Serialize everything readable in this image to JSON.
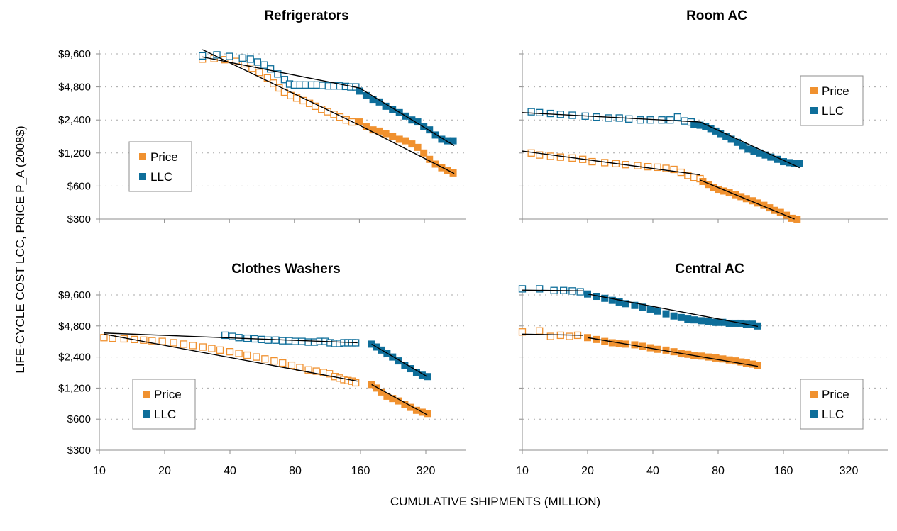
{
  "figure": {
    "ylabel": "LIFE-CYCLE COST LCC, PRICE P_A (2008$)",
    "xlabel": "CUMULATIVE SHIPMENTS (MILLION)"
  },
  "colors": {
    "price": "#f0912f",
    "llc": "#0e6e9a",
    "trend": "#000000"
  },
  "chart_data": [
    {
      "type": "scatter",
      "title": "Refrigerators",
      "xscale": "log",
      "yscale": "log",
      "xlim": [
        10,
        500
      ],
      "ylim": [
        300,
        12800
      ],
      "yticks": [
        "$9,600",
        "$4,800",
        "$2,400",
        "$1,200",
        "$600",
        "$300"
      ],
      "legend": {
        "position": "left",
        "items": [
          "Price",
          "LLC"
        ]
      },
      "series": [
        {
          "name": "Price",
          "key": "price",
          "open": {
            "x": [
              30,
              34,
              38,
              43,
              47,
              51,
              55,
              60,
              64,
              68,
              72,
              77,
              82,
              88,
              94,
              100,
              107,
              114,
              122,
              130,
              139,
              148
            ],
            "y": [
              8600,
              8700,
              8500,
              8200,
              7800,
              7100,
              6500,
              5800,
              5200,
              4700,
              4300,
              4000,
              3800,
              3600,
              3400,
              3200,
              3000,
              2850,
              2700,
              2550,
              2400,
              2300
            ]
          },
          "filled": {
            "x": [
              160,
              172,
              185,
              198,
              212,
              228,
              245,
              262,
              280,
              298,
              318,
              338,
              360,
              385,
              410,
              435
            ],
            "y": [
              2300,
              2100,
              1950,
              1900,
              1800,
              1700,
              1600,
              1550,
              1450,
              1350,
              1200,
              1050,
              950,
              880,
              830,
              790
            ]
          },
          "trends": [
            {
              "x": [
                30,
                160
              ],
              "y": [
                10500,
                2150
              ]
            },
            {
              "x": [
                160,
                440
              ],
              "y": [
                2150,
                780
              ]
            }
          ]
        },
        {
          "name": "LLC",
          "key": "llc",
          "open": {
            "x": [
              30,
              35,
              40,
              46,
              50,
              54,
              58,
              62,
              67,
              72,
              76,
              80,
              85,
              90,
              96,
              102,
              108,
              115,
              122,
              130,
              138,
              146,
              154
            ],
            "y": [
              9200,
              9400,
              9100,
              8800,
              8600,
              8100,
              7600,
              7000,
              6300,
              5600,
              5100,
              5000,
              5000,
              5000,
              5000,
              5000,
              4950,
              4900,
              4900,
              4900,
              4850,
              4800,
              4800
            ]
          },
          "filled": {
            "x": [
              160,
              172,
              185,
              198,
              212,
              228,
              245,
              262,
              280,
              298,
              318,
              338,
              360,
              385,
              410,
              435
            ],
            "y": [
              4400,
              4000,
              3700,
              3500,
              3200,
              3000,
              2800,
              2600,
              2400,
              2300,
              2100,
              1950,
              1750,
              1600,
              1550,
              1550
            ]
          },
          "trends": [
            {
              "x": [
                30,
                160
              ],
              "y": [
                9000,
                4700
              ]
            },
            {
              "x": [
                160,
                440
              ],
              "y": [
                4700,
                1400
              ]
            }
          ]
        }
      ]
    },
    {
      "type": "scatter",
      "title": "Room AC",
      "xscale": "log",
      "yscale": "log",
      "xlim": [
        10,
        500
      ],
      "ylim": [
        300,
        12800
      ],
      "legend": {
        "position": "top-right",
        "items": [
          "Price",
          "LLC"
        ]
      },
      "series": [
        {
          "name": "Price",
          "key": "price",
          "open": {
            "x": [
              11,
              12,
              13.5,
              15,
              17,
              19,
              21,
              24,
              27,
              30,
              34,
              38,
              42,
              46,
              50,
              54,
              58,
              62,
              66
            ],
            "y": [
              1200,
              1150,
              1120,
              1100,
              1080,
              1050,
              1000,
              980,
              960,
              940,
              920,
              900,
              890,
              870,
              850,
              800,
              750,
              720,
              700
            ]
          },
          "filled": {
            "x": [
              68,
              72,
              76,
              80,
              85,
              90,
              96,
              102,
              108,
              115,
              122,
              130,
              138,
              146,
              155,
              165,
              175,
              185
            ],
            "y": [
              660,
              620,
              580,
              560,
              540,
              520,
              500,
              480,
              460,
              440,
              420,
              400,
              380,
              360,
              345,
              325,
              305,
              300
            ]
          },
          "trends": [
            {
              "x": [
                10,
                66
              ],
              "y": [
                1250,
                760
              ]
            },
            {
              "x": [
                66,
                180
              ],
              "y": [
                680,
                300
              ]
            }
          ]
        },
        {
          "name": "LLC",
          "key": "llc",
          "open": {
            "x": [
              11,
              12,
              13.5,
              15,
              17,
              19.5,
              22,
              25,
              28,
              31,
              35,
              39,
              44,
              48,
              52,
              56,
              60
            ],
            "y": [
              2850,
              2800,
              2750,
              2700,
              2650,
              2600,
              2550,
              2500,
              2500,
              2450,
              2400,
              2400,
              2400,
              2400,
              2550,
              2350,
              2300
            ]
          },
          "filled": {
            "x": [
              62,
              66,
              70,
              74,
              78,
              82,
              87,
              92,
              98,
              104,
              110,
              117,
              124,
              132,
              140,
              150,
              160,
              170,
              180,
              190
            ],
            "y": [
              2200,
              2150,
              2100,
              2000,
              1900,
              1800,
              1700,
              1600,
              1500,
              1400,
              1300,
              1250,
              1200,
              1150,
              1100,
              1050,
              1000,
              980,
              970,
              960
            ]
          },
          "trends": [
            {
              "x": [
                10,
                66
              ],
              "y": [
                2800,
                2300
              ]
            },
            {
              "x": [
                66,
                190
              ],
              "y": [
                2300,
                880
              ]
            }
          ]
        }
      ]
    },
    {
      "type": "scatter",
      "title": "Clothes Washers",
      "xscale": "log",
      "yscale": "log",
      "xlim": [
        10,
        500
      ],
      "ylim": [
        300,
        12800
      ],
      "yticks": [
        "$9,600",
        "$4,800",
        "$2,400",
        "$1,200",
        "$600",
        "$300"
      ],
      "xticks": [
        "10",
        "20",
        "40",
        "80",
        "160",
        "320"
      ],
      "legend": {
        "position": "bottom-left",
        "items": [
          "Price",
          "LLC"
        ]
      },
      "series": [
        {
          "name": "Price",
          "key": "price",
          "open": {
            "x": [
              10.5,
              11.5,
              13,
              14.5,
              16,
              17.5,
              19.5,
              22,
              24.5,
              27,
              30,
              33,
              36,
              40,
              44,
              48,
              53,
              58,
              64,
              70,
              77,
              84,
              92,
              100,
              108,
              115,
              122,
              128,
              134,
              140,
              146,
              152
            ],
            "y": [
              3700,
              3650,
              3600,
              3550,
              3500,
              3450,
              3400,
              3300,
              3200,
              3100,
              3000,
              2900,
              2800,
              2700,
              2600,
              2500,
              2400,
              2300,
              2200,
              2100,
              2000,
              1900,
              1800,
              1750,
              1700,
              1650,
              1550,
              1500,
              1450,
              1420,
              1400,
              1350
            ]
          },
          "filled": {
            "x": [
              180,
              190,
              200,
              212,
              225,
              240,
              256,
              272,
              290,
              308,
              325
            ],
            "y": [
              1300,
              1200,
              1100,
              1000,
              950,
              900,
              830,
              780,
              730,
              700,
              680
            ]
          },
          "trends": [
            {
              "x": [
                10.5,
                155
              ],
              "y": [
                4000,
                1400
              ]
            },
            {
              "x": [
                180,
                325
              ],
              "y": [
                1300,
                660
              ]
            }
          ]
        },
        {
          "name": "LLC",
          "key": "llc",
          "open": {
            "x": [
              38,
              41,
              44,
              48,
              52,
              56,
              60,
              65,
              70,
              75,
              80,
              86,
              92,
              98,
              104,
              110,
              116,
              122,
              128,
              134,
              140,
              146,
              152
            ],
            "y": [
              3900,
              3800,
              3700,
              3650,
              3600,
              3550,
              3500,
              3500,
              3450,
              3450,
              3400,
              3400,
              3350,
              3350,
              3400,
              3400,
              3300,
              3250,
              3250,
              3300,
              3300,
              3300,
              3300
            ]
          },
          "filled": {
            "x": [
              180,
              190,
              200,
              212,
              225,
              240,
              256,
              272,
              290,
              308,
              325
            ],
            "y": [
              3200,
              3000,
              2800,
              2600,
              2400,
              2200,
              2000,
              1850,
              1700,
              1600,
              1550
            ]
          },
          "trends": [
            {
              "x": [
                10.5,
                155
              ],
              "y": [
                4100,
                3300
              ]
            },
            {
              "x": [
                180,
                325
              ],
              "y": [
                3200,
                1550
              ]
            }
          ]
        }
      ]
    },
    {
      "type": "scatter",
      "title": "Central AC",
      "xscale": "log",
      "yscale": "log",
      "xlim": [
        10,
        500
      ],
      "ylim": [
        300,
        12800
      ],
      "xticks": [
        "10",
        "20",
        "40",
        "80",
        "160",
        "320"
      ],
      "legend": {
        "position": "bottom-right",
        "items": [
          "Price",
          "LLC"
        ]
      },
      "series": [
        {
          "name": "Price",
          "key": "price",
          "open": {
            "x": [
              10,
              12,
              13.5,
              15,
              16.5,
              18
            ],
            "y": [
              4200,
              4300,
              3800,
              3900,
              3800,
              3900
            ]
          },
          "filled": {
            "x": [
              20,
              22,
              24,
              26,
              28,
              30,
              33,
              36,
              39,
              42,
              46,
              50,
              54,
              58,
              62,
              67,
              72,
              78,
              84,
              90,
              96,
              102,
              108,
              115,
              122
            ],
            "y": [
              3700,
              3550,
              3400,
              3300,
              3250,
              3200,
              3150,
              3050,
              2950,
              2850,
              2800,
              2700,
              2600,
              2550,
              2500,
              2450,
              2400,
              2350,
              2300,
              2250,
              2200,
              2150,
              2100,
              2050,
              2000
            ]
          },
          "trends": [
            {
              "x": [
                10,
                19
              ],
              "y": [
                4000,
                3900
              ]
            },
            {
              "x": [
                20,
                122
              ],
              "y": [
                3700,
                1950
              ]
            }
          ]
        },
        {
          "name": "LLC",
          "key": "llc",
          "open": {
            "x": [
              10,
              12,
              14,
              15.5,
              17,
              18.5
            ],
            "y": [
              11000,
              11000,
              10600,
              10600,
              10500,
              10300
            ]
          },
          "filled": {
            "x": [
              20,
              22,
              24,
              26,
              28,
              30,
              33,
              36,
              39,
              42,
              46,
              50,
              54,
              58,
              62,
              67,
              72,
              78,
              84,
              90,
              96,
              102,
              108,
              115,
              122
            ],
            "y": [
              9800,
              9300,
              8900,
              8500,
              8200,
              7900,
              7600,
              7300,
              7000,
              6700,
              6300,
              6000,
              5800,
              5600,
              5500,
              5400,
              5300,
              5200,
              5200,
              5100,
              5100,
              5100,
              5000,
              5000,
              4800
            ]
          },
          "trends": [
            {
              "x": [
                10,
                19
              ],
              "y": [
                10700,
                10500
              ]
            },
            {
              "x": [
                20,
                122
              ],
              "y": [
                9800,
                4750
              ]
            }
          ]
        }
      ]
    }
  ]
}
